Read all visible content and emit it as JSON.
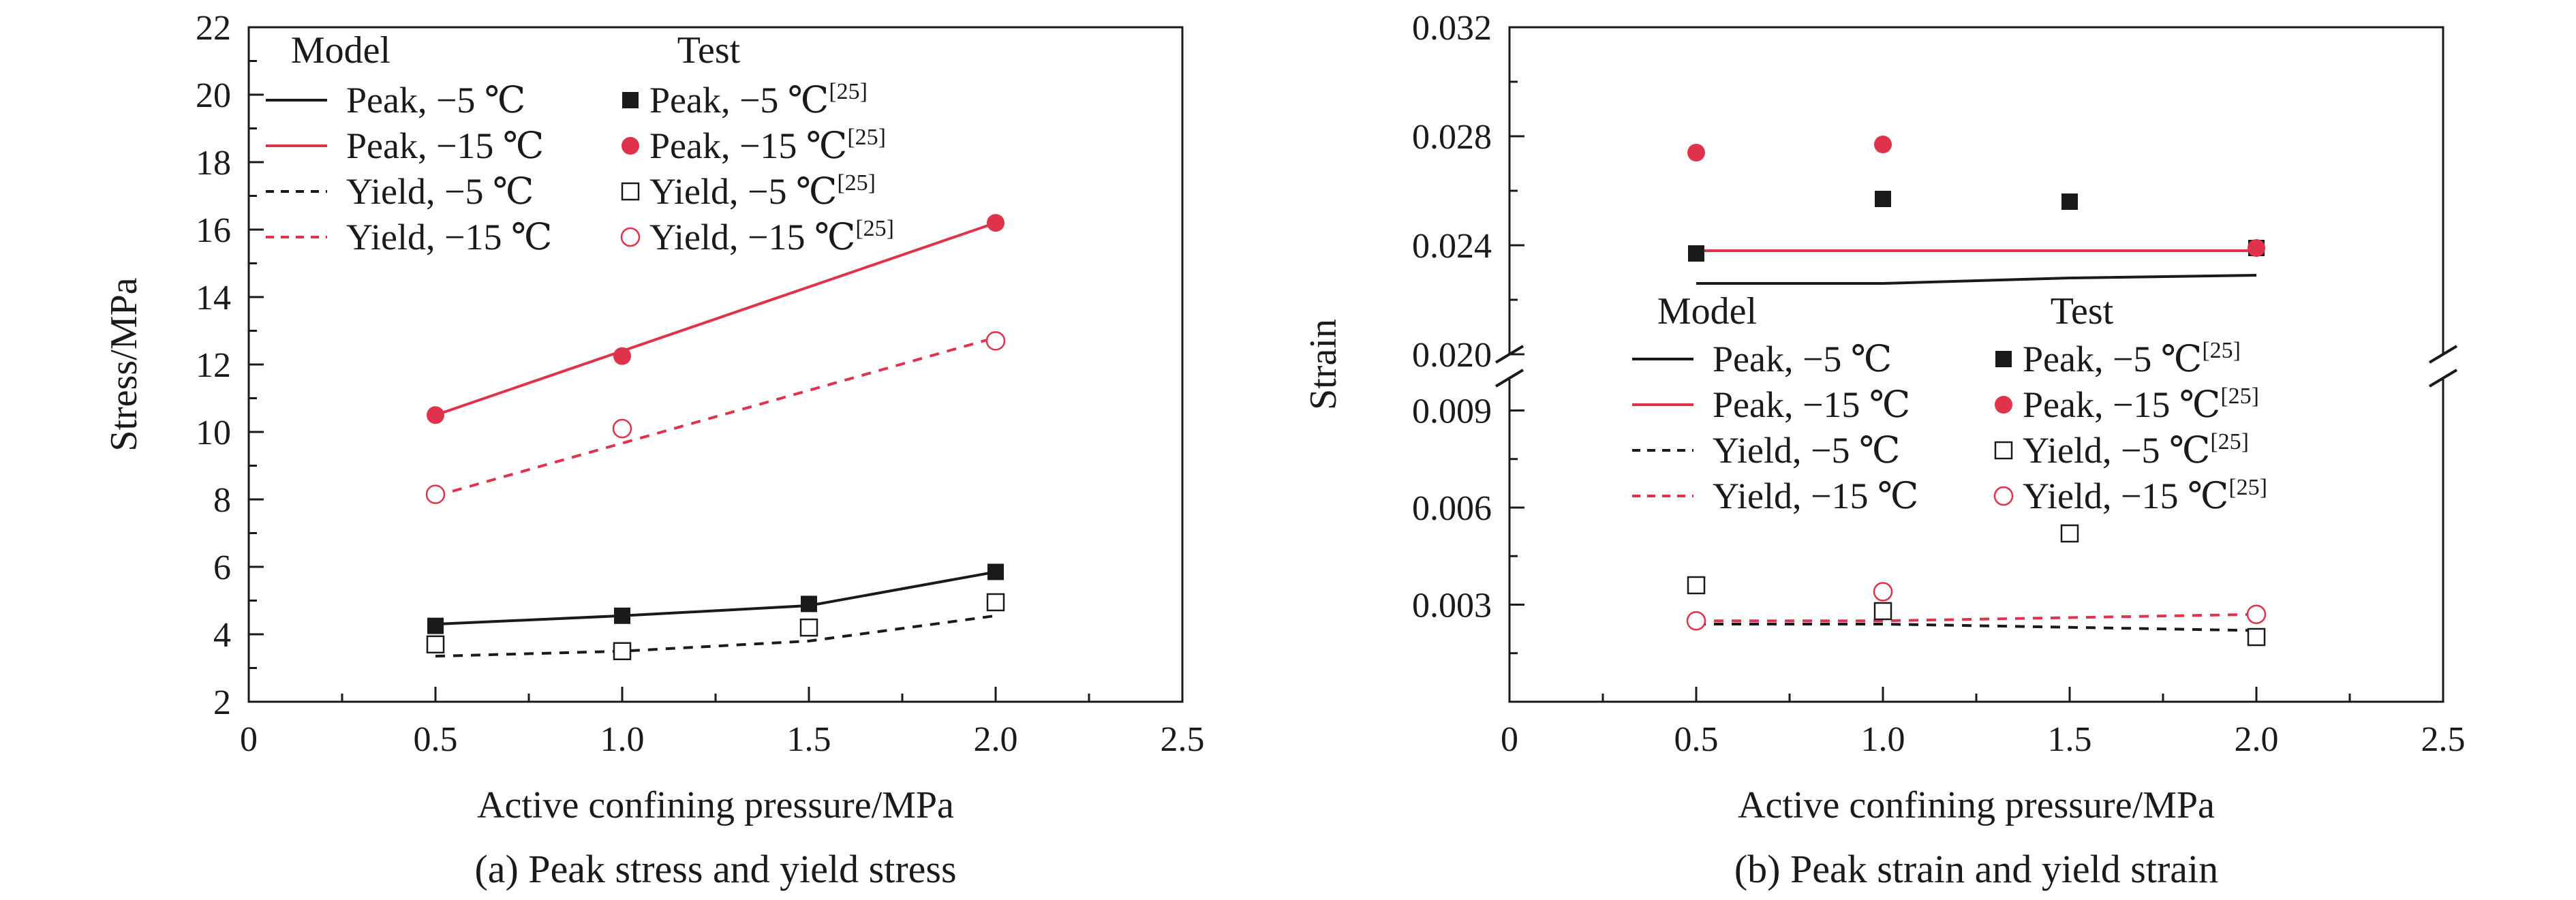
{
  "chart_data": [
    {
      "type": "line",
      "caption": "(a) Peak stress and yield stress",
      "xlabel": "Active confining pressure/MPa",
      "ylabel": "Stress/MPa",
      "xlim": [
        0,
        2.5
      ],
      "ylim": [
        2,
        22
      ],
      "xticks": [
        "0",
        "0.5",
        "1.0",
        "1.5",
        "2.0",
        "2.5"
      ],
      "yticks": [
        "2",
        "4",
        "6",
        "8",
        "10",
        "12",
        "14",
        "16",
        "18",
        "20",
        "22"
      ],
      "legend": {
        "position": "top-left",
        "model_header": "Model",
        "test_header": "Test",
        "model_entries": [
          "Peak, −5 ℃",
          "Peak, −15 ℃",
          "Yield, −5 ℃",
          "Yield, −15 ℃"
        ],
        "test_entries": [
          "Peak, −5 ℃",
          "Peak, −15 ℃",
          "Yield, −5 ℃",
          "Yield, −15 ℃"
        ],
        "ref": "[25]"
      },
      "model_series": [
        {
          "x": [
            0.5,
            1.0,
            1.5,
            2.0
          ],
          "y": [
            4.3,
            4.55,
            4.85,
            5.85
          ]
        },
        {
          "x": [
            0.5,
            2.0
          ],
          "y": [
            10.5,
            16.2
          ]
        },
        {
          "x": [
            0.5,
            1.0,
            1.5,
            2.0
          ],
          "y": [
            3.35,
            3.5,
            3.8,
            4.55
          ]
        },
        {
          "x": [
            0.5,
            2.0
          ],
          "y": [
            8.1,
            12.8
          ]
        }
      ],
      "test_series": [
        {
          "x": [
            0.5,
            1.0,
            1.5,
            2.0
          ],
          "y": [
            4.25,
            4.55,
            4.9,
            5.85
          ]
        },
        {
          "x": [
            0.5,
            1.0,
            2.0
          ],
          "y": [
            10.5,
            12.25,
            16.2
          ]
        },
        {
          "x": [
            0.5,
            1.0,
            1.5,
            2.0
          ],
          "y": [
            3.7,
            3.5,
            4.2,
            4.95
          ]
        },
        {
          "x": [
            0.5,
            1.0,
            2.0
          ],
          "y": [
            8.15,
            10.1,
            12.7
          ]
        }
      ]
    },
    {
      "type": "line",
      "caption": "(b) Peak strain and yield strain",
      "xlabel": "Active confining pressure/MPa",
      "ylabel": "Strain",
      "xlim": [
        0,
        2.5
      ],
      "ylim_lower": [
        0,
        0.01
      ],
      "ylim_upper": [
        0.02,
        0.032
      ],
      "broken_axis": true,
      "xticks": [
        "0",
        "0.5",
        "1.0",
        "1.5",
        "2.0",
        "2.5"
      ],
      "yticks_lower": [
        "0.003",
        "0.006",
        "0.009"
      ],
      "yticks_upper": [
        "0.020",
        "0.024",
        "0.028",
        "0.032"
      ],
      "legend": {
        "position": "middle",
        "model_header": "Model",
        "test_header": "Test",
        "model_entries": [
          "Peak, −5 ℃",
          "Peak, −15 ℃",
          "Yield, −5 ℃",
          "Yield, −15 ℃"
        ],
        "test_entries": [
          "Peak, −5 ℃",
          "Peak, −15 ℃",
          "Yield, −5 ℃",
          "Yield, −15 ℃"
        ],
        "ref": "[25]"
      },
      "model_series": [
        {
          "x": [
            0.5,
            1.0,
            1.5,
            2.0
          ],
          "y": [
            0.0226,
            0.0226,
            0.0228,
            0.0229
          ]
        },
        {
          "x": [
            0.5,
            2.0
          ],
          "y": [
            0.0238,
            0.0238
          ]
        },
        {
          "x": [
            0.5,
            1.0,
            1.5,
            2.0
          ],
          "y": [
            0.0024,
            0.0024,
            0.0023,
            0.0022
          ]
        },
        {
          "x": [
            0.5,
            1.0,
            1.5,
            2.0
          ],
          "y": [
            0.0025,
            0.0025,
            0.0026,
            0.0027
          ]
        }
      ],
      "test_series": [
        {
          "x": [
            0.5,
            1.0,
            1.5,
            2.0
          ],
          "y": [
            0.0237,
            0.0257,
            0.0256,
            0.0239
          ]
        },
        {
          "x": [
            0.5,
            1.0,
            2.0
          ],
          "y": [
            0.0274,
            0.0277,
            0.0239
          ]
        },
        {
          "x": [
            0.5,
            1.0,
            1.5,
            2.0
          ],
          "y": [
            0.0036,
            0.0028,
            0.0052,
            0.002
          ]
        },
        {
          "x": [
            0.5,
            1.0,
            2.0
          ],
          "y": [
            0.0025,
            0.0034,
            0.0027
          ]
        }
      ]
    }
  ],
  "colors": {
    "neg5": "#1a1a1a",
    "neg15": "#e0334b",
    "axis": "#1a1a1a"
  }
}
